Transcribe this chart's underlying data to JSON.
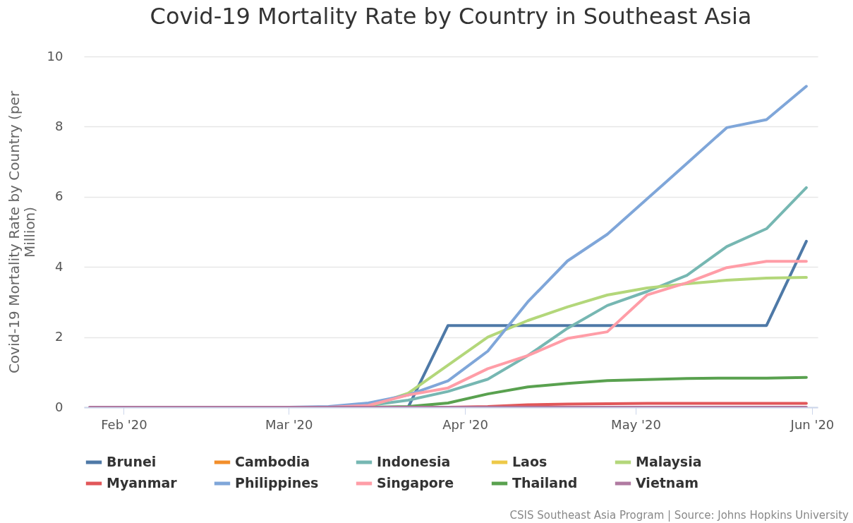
{
  "chart_data": {
    "type": "line",
    "title": "Covid-19 Mortality Rate by Country in Southeast Asia",
    "ylabel": "Covid-19 Mortality Rate by Country (per Million)",
    "x": [
      "2020-01-26",
      "2020-02-02",
      "2020-02-09",
      "2020-02-16",
      "2020-02-23",
      "2020-03-01",
      "2020-03-08",
      "2020-03-15",
      "2020-03-22",
      "2020-03-29",
      "2020-04-05",
      "2020-04-12",
      "2020-04-19",
      "2020-04-26",
      "2020-05-03",
      "2020-05-10",
      "2020-05-17",
      "2020-05-24",
      "2020-05-31"
    ],
    "series": [
      {
        "name": "Brunei",
        "color": "#4e79a7",
        "values": [
          null,
          null,
          null,
          null,
          null,
          null,
          null,
          null,
          0,
          2.33,
          2.33,
          2.33,
          2.33,
          2.33,
          2.33,
          2.33,
          2.33,
          2.33,
          4.73
        ]
      },
      {
        "name": "Cambodia",
        "color": "#f28e2b",
        "values": [
          null,
          null,
          null,
          null,
          null,
          null,
          null,
          null,
          null,
          null,
          null,
          null,
          null,
          null,
          null,
          null,
          null,
          null,
          null
        ]
      },
      {
        "name": "Indonesia",
        "color": "#76b7b2",
        "values": [
          null,
          null,
          null,
          null,
          null,
          null,
          0,
          0.05,
          0.2,
          0.45,
          0.8,
          1.47,
          2.25,
          2.9,
          3.3,
          3.76,
          4.58,
          5.09,
          6.26
        ]
      },
      {
        "name": "Laos",
        "color": "#edc948",
        "values": [
          null,
          null,
          null,
          null,
          null,
          null,
          null,
          null,
          null,
          null,
          null,
          null,
          null,
          null,
          null,
          null,
          null,
          null,
          null
        ]
      },
      {
        "name": "Malaysia",
        "color": "#b3d77a",
        "values": [
          null,
          null,
          null,
          null,
          null,
          null,
          0,
          0.02,
          0.4,
          1.2,
          2.0,
          2.47,
          2.86,
          3.2,
          3.4,
          3.52,
          3.62,
          3.68,
          3.7
        ]
      },
      {
        "name": "Myanmar",
        "color": "#e15759",
        "values": [
          null,
          null,
          null,
          null,
          null,
          null,
          null,
          null,
          null,
          0,
          0.02,
          0.07,
          0.09,
          0.1,
          0.11,
          0.11,
          0.11,
          0.11,
          0.11
        ]
      },
      {
        "name": "Philippines",
        "color": "#7fa6d9",
        "values": [
          null,
          null,
          null,
          null,
          null,
          0,
          0.02,
          0.12,
          0.35,
          0.75,
          1.6,
          3.0,
          4.17,
          4.93,
          5.94,
          6.95,
          7.97,
          8.2,
          9.15
        ]
      },
      {
        "name": "Singapore",
        "color": "#ff9da7",
        "values": [
          null,
          null,
          null,
          null,
          null,
          null,
          0,
          0.05,
          0.35,
          0.55,
          1.1,
          1.47,
          1.96,
          2.15,
          3.2,
          3.55,
          3.98,
          4.16,
          4.16
        ]
      },
      {
        "name": "Thailand",
        "color": "#59a14f",
        "values": [
          null,
          null,
          null,
          null,
          null,
          null,
          null,
          0,
          0.02,
          0.12,
          0.38,
          0.58,
          0.68,
          0.76,
          0.79,
          0.82,
          0.83,
          0.83,
          0.85
        ]
      },
      {
        "name": "Vietnam",
        "color": "#b07aa1",
        "values": [
          0,
          0,
          0,
          0,
          0,
          0,
          0,
          0,
          0,
          0,
          0,
          0,
          0,
          0,
          0,
          0,
          0,
          0,
          0
        ]
      }
    ],
    "xlim": [
      "2020-01-25",
      "2020-06-02"
    ],
    "xticks": [
      {
        "value": "2020-02-01",
        "label": "Feb '20"
      },
      {
        "value": "2020-03-01",
        "label": "Mar '20"
      },
      {
        "value": "2020-04-01",
        "label": "Apr '20"
      },
      {
        "value": "2020-05-01",
        "label": "May '20"
      },
      {
        "value": "2020-06-01",
        "label": "Jun '20"
      }
    ],
    "ylim": [
      0,
      10
    ],
    "yticks": [
      0,
      2,
      4,
      6,
      8,
      10
    ],
    "grid": "y",
    "legend": "bottom",
    "marker": "none",
    "line_style": "solid",
    "annotations": [
      "CSIS Southeast Asia Program | Source: Johns Hopkins University"
    ]
  }
}
